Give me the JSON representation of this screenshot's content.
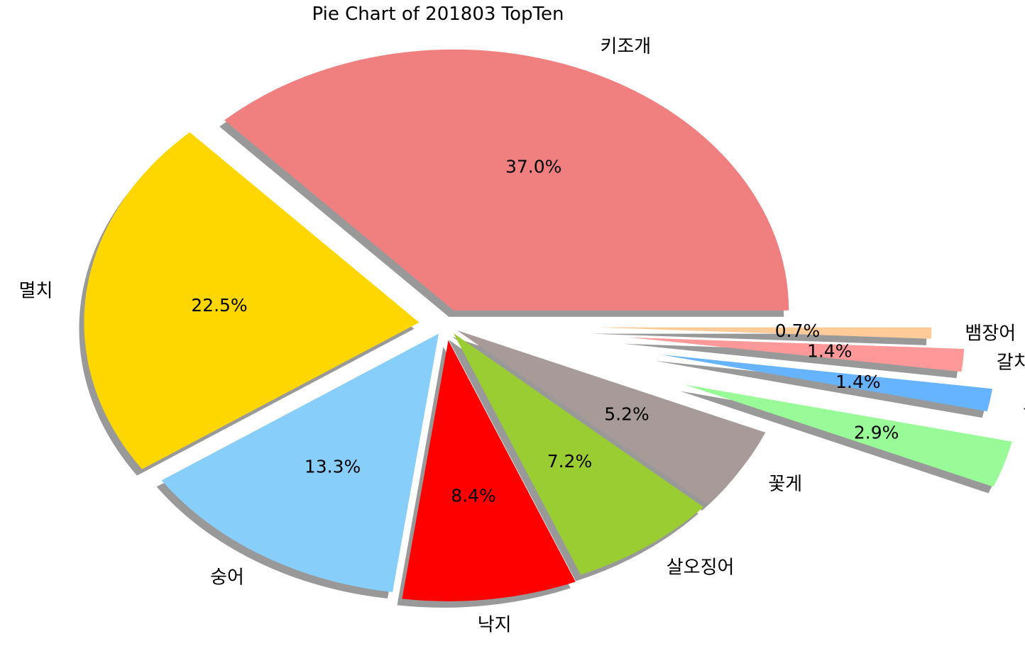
{
  "chart_data": {
    "type": "pie",
    "title": "Pie Chart of 201803 TopTen",
    "start_angle_deg": 0,
    "direction": "counterclockwise",
    "shadow": true,
    "slices": [
      {
        "label": "키조개",
        "value": 37.0,
        "value_label": "37.0%",
        "color": "#f08080"
      },
      {
        "label": "멸치",
        "value": 22.5,
        "value_label": "22.5%",
        "color": "#ffd700"
      },
      {
        "label": "숭어",
        "value": 13.3,
        "value_label": "13.3%",
        "color": "#87cefa"
      },
      {
        "label": "낙지",
        "value": 8.4,
        "value_label": "8.4%",
        "color": "#ff0000"
      },
      {
        "label": "살오징어",
        "value": 7.2,
        "value_label": "7.2%",
        "color": "#9acd32"
      },
      {
        "label": "꽃게",
        "value": 5.2,
        "value_label": "5.2%",
        "color": "#a89a98"
      },
      {
        "label": "소라",
        "value": 2.9,
        "value_label": "2.9%",
        "color": "#98fb98"
      },
      {
        "label": "고등어",
        "value": 1.4,
        "value_label": "1.4%",
        "color": "#66b3ff"
      },
      {
        "label": "갈치류",
        "value": 1.4,
        "value_label": "1.4%",
        "color": "#ff9999"
      },
      {
        "label": "뱀장어",
        "value": 0.7,
        "value_label": "0.7%",
        "color": "#ffcc99"
      }
    ],
    "explode": [
      0.06,
      0.08,
      0.04,
      0.06,
      0.04,
      0.04,
      0.75,
      0.65,
      0.55,
      0.45
    ]
  }
}
